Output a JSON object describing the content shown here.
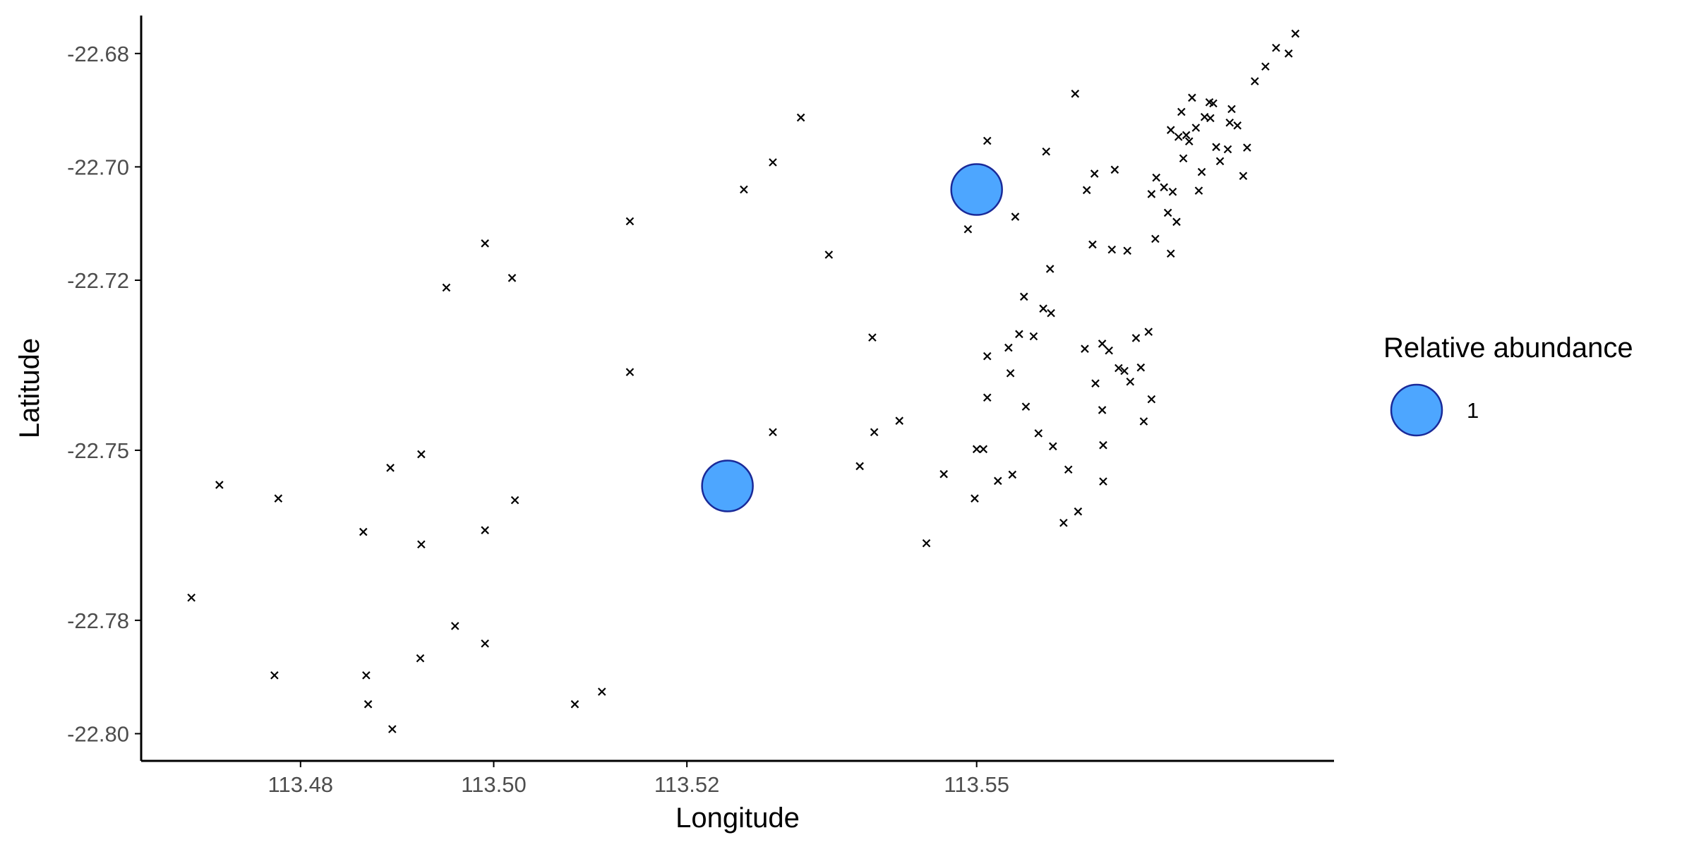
{
  "chart_data": {
    "type": "scatter",
    "title": "",
    "xlabel": "Longitude",
    "ylabel": "Latitude",
    "xlim": [
      113.4635,
      113.587
    ],
    "ylim": [
      -22.8048,
      -22.6733
    ],
    "x_ticks": [
      113.48,
      113.5,
      113.52,
      113.55
    ],
    "x_tick_labels": [
      "113.48",
      "113.50",
      "113.52",
      "113.55"
    ],
    "y_ticks": [
      -22.68,
      -22.7,
      -22.72,
      -22.75,
      -22.78,
      -22.8
    ],
    "y_tick_labels": [
      "-22.68",
      "-22.70",
      "-22.72",
      "-22.75",
      "-22.78",
      "-22.80"
    ],
    "grid": false,
    "legend": {
      "title": "Relative abundance",
      "position": "right",
      "entries": [
        {
          "label": "1",
          "size_value": 1
        }
      ]
    },
    "colors": {
      "bubble_fill": "#4da6ff",
      "bubble_stroke": "#1a2a99",
      "marker": "#000000",
      "axis": "#000000"
    },
    "series": [
      {
        "marker": "x",
        "points": [
          [
            113.4687,
            -22.776
          ],
          [
            113.4716,
            -22.7561
          ],
          [
            113.4777,
            -22.7585
          ],
          [
            113.4773,
            -22.7897
          ],
          [
            113.4865,
            -22.7644
          ],
          [
            113.4868,
            -22.7897
          ],
          [
            113.487,
            -22.7948
          ],
          [
            113.4893,
            -22.7531
          ],
          [
            113.4895,
            -22.7992
          ],
          [
            113.4924,
            -22.7867
          ],
          [
            113.4925,
            -22.7507
          ],
          [
            113.4925,
            -22.7666
          ],
          [
            113.4951,
            -22.7213
          ],
          [
            113.496,
            -22.781
          ],
          [
            113.4991,
            -22.7135
          ],
          [
            113.4991,
            -22.7641
          ],
          [
            113.4991,
            -22.7841
          ],
          [
            113.5019,
            -22.7196
          ],
          [
            113.5022,
            -22.7588
          ],
          [
            113.5084,
            -22.7948
          ],
          [
            113.5112,
            -22.7926
          ],
          [
            113.5141,
            -22.7096
          ],
          [
            113.5141,
            -22.7362
          ],
          [
            113.5259,
            -22.704
          ],
          [
            113.5289,
            -22.6992
          ],
          [
            113.5289,
            -22.7468
          ],
          [
            113.5318,
            -22.6913
          ],
          [
            113.5347,
            -22.7155
          ],
          [
            113.5379,
            -22.7528
          ],
          [
            113.5392,
            -22.7301
          ],
          [
            113.5394,
            -22.7468
          ],
          [
            113.542,
            -22.7448
          ],
          [
            113.5448,
            -22.7664
          ],
          [
            113.5466,
            -22.7542
          ],
          [
            113.5491,
            -22.711
          ],
          [
            113.5498,
            -22.7585
          ],
          [
            113.55,
            -22.7498
          ],
          [
            113.5507,
            -22.7498
          ],
          [
            113.5511,
            -22.7334
          ],
          [
            113.5511,
            -22.7407
          ],
          [
            113.5511,
            -22.7048
          ],
          [
            113.5511,
            -22.6954
          ],
          [
            113.5522,
            -22.7554
          ],
          [
            113.5533,
            -22.7319
          ],
          [
            113.5535,
            -22.7364
          ],
          [
            113.5537,
            -22.7543
          ],
          [
            113.554,
            -22.7088
          ],
          [
            113.5544,
            -22.7295
          ],
          [
            113.5549,
            -22.7229
          ],
          [
            113.5551,
            -22.7423
          ],
          [
            113.5559,
            -22.7299
          ],
          [
            113.5564,
            -22.747
          ],
          [
            113.5569,
            -22.725
          ],
          [
            113.5572,
            -22.6973
          ],
          [
            113.5576,
            -22.718
          ],
          [
            113.5577,
            -22.7258
          ],
          [
            113.5579,
            -22.7493
          ],
          [
            113.559,
            -22.7628
          ],
          [
            113.5595,
            -22.7534
          ],
          [
            113.5602,
            -22.6871
          ],
          [
            113.5605,
            -22.7608
          ],
          [
            113.5612,
            -22.7321
          ],
          [
            113.5614,
            -22.7041
          ],
          [
            113.562,
            -22.7137
          ],
          [
            113.5622,
            -22.7012
          ],
          [
            113.5623,
            -22.7382
          ],
          [
            113.563,
            -22.7312
          ],
          [
            113.563,
            -22.7429
          ],
          [
            113.5631,
            -22.7491
          ],
          [
            113.5631,
            -22.7555
          ],
          [
            113.5637,
            -22.7324
          ],
          [
            113.564,
            -22.7146
          ],
          [
            113.5643,
            -22.7005
          ],
          [
            113.5647,
            -22.7355
          ],
          [
            113.5653,
            -22.736
          ],
          [
            113.5656,
            -22.7148
          ],
          [
            113.5659,
            -22.7379
          ],
          [
            113.5665,
            -22.7302
          ],
          [
            113.567,
            -22.7354
          ],
          [
            113.5673,
            -22.7449
          ],
          [
            113.5678,
            -22.7291
          ],
          [
            113.5681,
            -22.741
          ],
          [
            113.5681,
            -22.7048
          ],
          [
            113.5685,
            -22.7127
          ],
          [
            113.5686,
            -22.7019
          ],
          [
            113.5694,
            -22.7036
          ],
          [
            113.5698,
            -22.7081
          ],
          [
            113.5701,
            -22.7153
          ],
          [
            113.5701,
            -22.6935
          ],
          [
            113.5703,
            -22.7044
          ],
          [
            113.5707,
            -22.7097
          ],
          [
            113.5709,
            -22.6947
          ],
          [
            113.5712,
            -22.6903
          ],
          [
            113.5714,
            -22.6985
          ],
          [
            113.5717,
            -22.6944
          ],
          [
            113.572,
            -22.6955
          ],
          [
            113.5723,
            -22.6878
          ],
          [
            113.5727,
            -22.6931
          ],
          [
            113.573,
            -22.7042
          ],
          [
            113.5733,
            -22.7009
          ],
          [
            113.5736,
            -22.6912
          ],
          [
            113.5741,
            -22.6886
          ],
          [
            113.5742,
            -22.6914
          ],
          [
            113.5745,
            -22.6888
          ],
          [
            113.5748,
            -22.6965
          ],
          [
            113.5752,
            -22.699
          ],
          [
            113.576,
            -22.6969
          ],
          [
            113.5762,
            -22.6922
          ],
          [
            113.5764,
            -22.6898
          ],
          [
            113.577,
            -22.6927
          ],
          [
            113.5776,
            -22.7016
          ],
          [
            113.578,
            -22.6966
          ],
          [
            113.5788,
            -22.6849
          ],
          [
            113.5799,
            -22.6823
          ],
          [
            113.581,
            -22.679
          ],
          [
            113.5823,
            -22.68
          ],
          [
            113.583,
            -22.6765
          ]
        ]
      },
      {
        "marker": "bubble",
        "size_value": 1,
        "points": [
          [
            113.5242,
            -22.7563
          ],
          [
            113.55,
            -22.704
          ]
        ]
      }
    ]
  }
}
